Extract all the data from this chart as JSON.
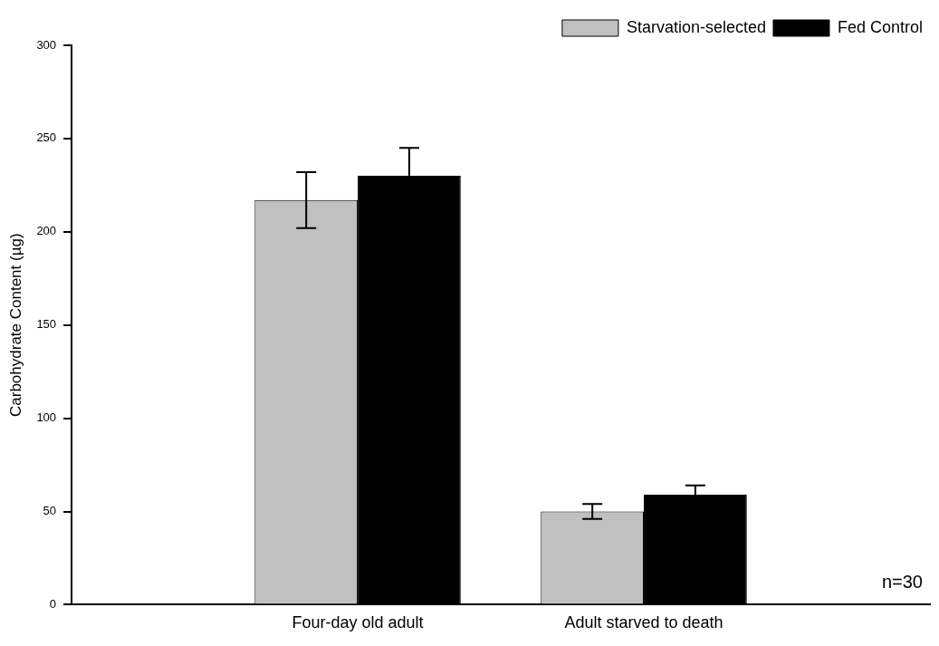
{
  "chart_data": {
    "type": "bar",
    "ylabel": "Carbohydrate Content (µg)",
    "categories": [
      "Four-day old adult",
      "Adult starved to death"
    ],
    "series": [
      {
        "name": "Starvation-selected",
        "color": "#c0c0c0",
        "values": [
          217,
          50
        ],
        "errors": [
          15,
          4
        ]
      },
      {
        "name": "Fed Control",
        "color": "#000000",
        "values": [
          230,
          59
        ],
        "errors": [
          15,
          5
        ]
      }
    ],
    "ylim": [
      0,
      300
    ],
    "yticks": [
      0,
      50,
      100,
      150,
      200,
      250,
      300
    ],
    "grid": false,
    "legend": "top right",
    "annotations": [
      "n=30"
    ]
  }
}
